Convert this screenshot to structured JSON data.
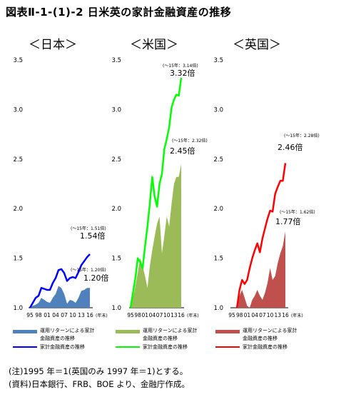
{
  "title": "図表Ⅱ-1-(1)-2 日米英の家計金融資産の推移",
  "chart_data": [
    {
      "type": "area",
      "panel_title": "＜日本＞",
      "x": [
        1995,
        1996,
        1997,
        1998,
        1999,
        2000,
        2001,
        2002,
        2003,
        2004,
        2005,
        2006,
        2007,
        2008,
        2009,
        2010,
        2011,
        2012,
        2013,
        2014,
        2015,
        2016
      ],
      "tick_labels": [
        "95",
        "98",
        "01",
        "04",
        "07",
        "10",
        "13",
        "16"
      ],
      "x_unit": "(年末)",
      "ylim": [
        1.0,
        3.5
      ],
      "yticks": [
        1.0,
        1.5,
        2.0,
        2.5,
        3.0,
        3.5
      ],
      "ytick_labels": [
        "1.0",
        "1.5",
        "2.0",
        "2.5",
        "3.0",
        "3.5"
      ],
      "series": [
        {
          "name": "運用リターンによる家計金融資産の推移",
          "style": "area",
          "color": "#4f81bd",
          "values": [
            1.0,
            1.02,
            1.03,
            1.05,
            1.1,
            1.08,
            1.06,
            1.05,
            1.1,
            1.14,
            1.22,
            1.2,
            1.14,
            1.04,
            1.08,
            1.07,
            1.05,
            1.1,
            1.17,
            1.18,
            1.2,
            1.2
          ]
        },
        {
          "name": "家計金融資産の推移",
          "style": "line",
          "color": "#0000ff",
          "values": [
            1.0,
            1.05,
            1.1,
            1.12,
            1.2,
            1.19,
            1.18,
            1.18,
            1.25,
            1.3,
            1.38,
            1.39,
            1.35,
            1.27,
            1.3,
            1.31,
            1.3,
            1.36,
            1.43,
            1.47,
            1.51,
            1.54
          ]
        }
      ],
      "annotations": [
        {
          "small": "(～15年：1.51倍)",
          "big": "1.54倍"
        },
        {
          "small": "(～15年：1.20倍)",
          "big": "1.20倍"
        }
      ]
    },
    {
      "type": "area",
      "panel_title": "＜米国＞",
      "x": [
        1995,
        1996,
        1997,
        1998,
        1999,
        2000,
        2001,
        2002,
        2003,
        2004,
        2005,
        2006,
        2007,
        2008,
        2009,
        2010,
        2011,
        2012,
        2013,
        2014,
        2015,
        2016
      ],
      "tick_labels": [
        "95",
        "98",
        "01",
        "04",
        "07",
        "10",
        "13",
        "16"
      ],
      "x_unit": "(年末)",
      "ylim": [
        1.0,
        3.5
      ],
      "yticks": [
        1.0,
        1.5,
        2.0,
        2.5,
        3.0,
        3.5
      ],
      "ytick_labels": [
        "1.0",
        "1.5",
        "2.0",
        "2.5",
        "3.0",
        "3.5"
      ],
      "series": [
        {
          "name": "運用リターンによる家計金融資産の推移",
          "style": "area",
          "color": "#9bbb59",
          "values": [
            1.0,
            1.1,
            1.22,
            1.35,
            1.5,
            1.42,
            1.32,
            1.2,
            1.42,
            1.58,
            1.72,
            1.85,
            1.92,
            1.55,
            1.72,
            1.92,
            1.82,
            2.05,
            2.25,
            2.32,
            2.32,
            2.45
          ]
        },
        {
          "name": "家計金融資産の推移",
          "style": "line",
          "color": "#00ff00",
          "values": [
            1.0,
            1.15,
            1.3,
            1.5,
            1.46,
            1.4,
            1.62,
            1.82,
            2.05,
            2.32,
            2.12,
            2.02,
            2.25,
            2.35,
            2.6,
            2.7,
            2.82,
            3.02,
            3.1,
            3.15,
            3.14,
            3.32
          ]
        }
      ],
      "annotations": [
        {
          "small": "(～15年：3.14倍)",
          "big": "3.32倍"
        },
        {
          "small": "(～15年：2.32倍)",
          "big": "2.45倍"
        }
      ]
    },
    {
      "type": "area",
      "panel_title": "＜英国＞",
      "x": [
        1997,
        1998,
        1999,
        2000,
        2001,
        2002,
        2003,
        2004,
        2005,
        2006,
        2007,
        2008,
        2009,
        2010,
        2011,
        2012,
        2013,
        2014,
        2015,
        2016
      ],
      "tick_labels": [
        "95",
        "98",
        "01",
        "04",
        "07",
        "10",
        "13",
        "16"
      ],
      "x_unit": "(年末)",
      "ylim": [
        1.0,
        3.5
      ],
      "yticks": [
        1.0,
        1.5,
        2.0,
        2.5,
        3.0,
        3.5
      ],
      "ytick_labels": [
        "1.0",
        "1.5",
        "2.0",
        "2.5",
        "3.0",
        "3.5"
      ],
      "series": [
        {
          "name": "運用リターンによる家計金融資産の推移",
          "style": "area",
          "color": "#c0504d",
          "values": [
            1.0,
            1.12,
            1.18,
            1.1,
            1.02,
            1.0,
            1.08,
            1.12,
            1.18,
            1.12,
            1.08,
            1.15,
            1.25,
            1.4,
            1.28,
            1.32,
            1.45,
            1.55,
            1.62,
            1.77
          ]
        },
        {
          "name": "家計金融資産の推移",
          "style": "line",
          "color": "#ff0000",
          "values": [
            1.0,
            1.18,
            1.28,
            1.24,
            1.28,
            1.4,
            1.5,
            1.58,
            1.65,
            1.56,
            1.7,
            1.8,
            1.9,
            1.98,
            1.97,
            2.15,
            2.22,
            2.28,
            2.28,
            2.46
          ]
        }
      ],
      "annotations": [
        {
          "small": "(～15年：2.28倍)",
          "big": "2.46倍"
        },
        {
          "small": "(～15年：1.62倍)",
          "big": "1.77倍"
        }
      ]
    }
  ],
  "legend": [
    {
      "area_label_1": "運用リターンによる家計",
      "area_label_2": "金融資産の推移",
      "line_label": "家計金融資産の推移"
    },
    {
      "area_label_1": "運用リターンによる家計",
      "area_label_2": "金融資産の推移",
      "line_label": "家計金融資産の推移"
    },
    {
      "area_label_1": "運用リターンによる家計",
      "area_label_2": "金融資産の推移",
      "line_label": "家計金融資産の推移"
    }
  ],
  "notes": {
    "note1": "(注)1995 年＝1(英国のみ 1997 年＝1)とする。",
    "note2": "(資料)日本銀行、FRB、BOE より、金融庁作成。"
  }
}
